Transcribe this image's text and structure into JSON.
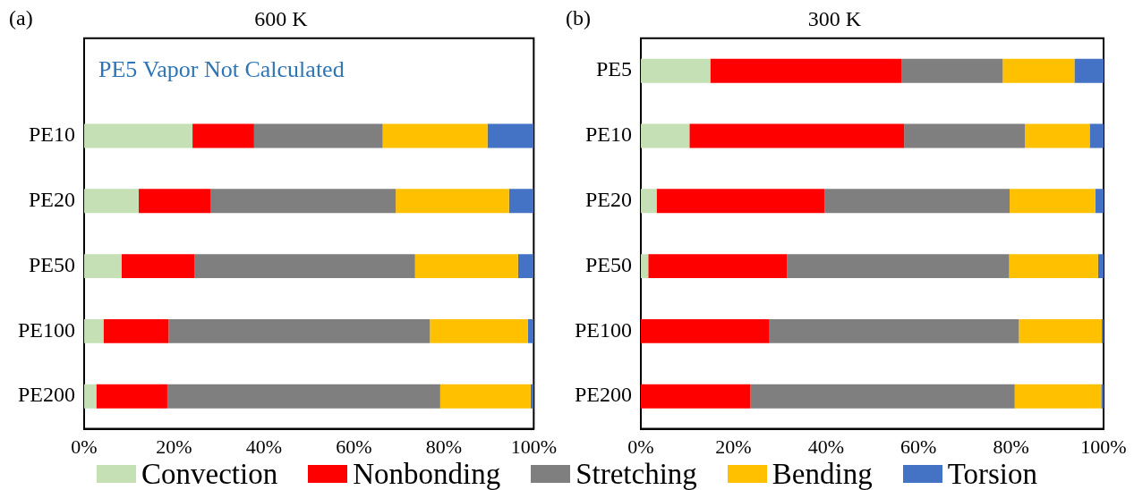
{
  "chart_data": [
    {
      "type": "bar",
      "orientation": "horizontal",
      "stacked": true,
      "title": "600 K",
      "annotations": [
        "(a)",
        "PE5 Vapor Not Calculated"
      ],
      "categories": [
        null,
        "PE10",
        "PE20",
        "PE50",
        "PE100",
        "PE200"
      ],
      "series": [
        {
          "name": "Convection",
          "color": "#c5e0b4",
          "values": [
            null,
            24.1,
            12.1,
            8.3,
            4.3,
            2.7
          ]
        },
        {
          "name": "Nonbonding",
          "color": "#ff0000",
          "values": [
            null,
            13.7,
            16.1,
            16.3,
            14.5,
            15.8
          ]
        },
        {
          "name": "Stretching",
          "color": "#7f7f7f",
          "values": [
            null,
            28.6,
            41.1,
            49.0,
            58.1,
            60.7
          ]
        },
        {
          "name": "Bending",
          "color": "#ffc000",
          "values": [
            null,
            23.3,
            25.2,
            22.9,
            21.8,
            20.1
          ]
        },
        {
          "name": "Torsion",
          "color": "#4472c4",
          "values": [
            null,
            10.3,
            5.5,
            3.5,
            1.3,
            0.7
          ]
        }
      ],
      "xlim": [
        0,
        100
      ],
      "xticks": [
        {
          "value": 0,
          "label": "0%"
        },
        {
          "value": 20,
          "label": "20%"
        },
        {
          "value": 40,
          "label": "40%"
        },
        {
          "value": 60,
          "label": "60%"
        },
        {
          "value": 80,
          "label": "80%"
        },
        {
          "value": 100,
          "label": "100%"
        }
      ],
      "grid": false,
      "legend": "bottom"
    },
    {
      "type": "bar",
      "orientation": "horizontal",
      "stacked": true,
      "title": "300 K",
      "annotations": [
        "(b)"
      ],
      "categories": [
        "PE5",
        "PE10",
        "PE20",
        "PE50",
        "PE100",
        "PE200"
      ],
      "series": [
        {
          "color": "#c5e0b4",
          "values": [
            15.0,
            10.5,
            3.4,
            1.6,
            0,
            0
          ]
        },
        {
          "color": "#ff0000",
          "values": [
            41.3,
            46.4,
            36.3,
            30.0,
            27.8,
            23.7
          ]
        },
        {
          "color": "#7f7f7f",
          "values": [
            21.9,
            26.1,
            40.0,
            48.0,
            53.9,
            57.1
          ]
        },
        {
          "color": "#ffc000",
          "values": [
            15.5,
            14.0,
            18.5,
            19.2,
            17.9,
            18.7
          ]
        },
        {
          "color": "#4472c4",
          "values": [
            6.3,
            3.0,
            1.8,
            1.2,
            0.4,
            0.5
          ]
        }
      ],
      "xlim": [
        0,
        100
      ],
      "xticks": [
        {
          "value": 0,
          "label": "0%"
        },
        {
          "value": 20,
          "label": "20%"
        },
        {
          "value": 40,
          "label": "40%"
        },
        {
          "value": 60,
          "label": "60%"
        },
        {
          "value": 80,
          "label": "80%"
        },
        {
          "value": 100,
          "label": "100%"
        }
      ],
      "grid": false
    }
  ]
}
